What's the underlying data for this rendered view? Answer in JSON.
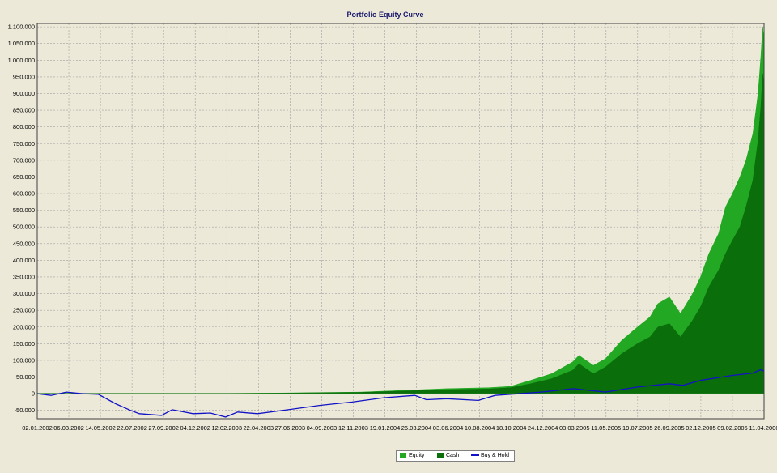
{
  "chart_data": {
    "type": "area",
    "title": "Portfolio Equity Curve",
    "ylim": [
      -75000,
      1110000
    ],
    "y_tick_labels": [
      "1.100.000",
      "1.050.000",
      "1.000.000",
      "950.000",
      "900.000",
      "850.000",
      "800.000",
      "750.000",
      "700.000",
      "650.000",
      "600.000",
      "550.000",
      "500.000",
      "450.000",
      "400.000",
      "350.000",
      "300.000",
      "250.000",
      "200.000",
      "150.000",
      "100.000",
      "50.000",
      "0",
      "-50.000"
    ],
    "y_tick_values": [
      1100000,
      1050000,
      1000000,
      950000,
      900000,
      850000,
      800000,
      750000,
      700000,
      650000,
      600000,
      550000,
      500000,
      450000,
      400000,
      350000,
      300000,
      250000,
      200000,
      150000,
      100000,
      50000,
      0,
      -50000
    ],
    "x_tick_labels": [
      "02.01.2002",
      "06.03.2002",
      "14.05.2002",
      "22.07.2002",
      "27.09.2002",
      "04.12.2002",
      "12.02.2003",
      "22.04.2003",
      "27.06.2003",
      "04.09.2003",
      "12.11.2003",
      "19.01.2004",
      "26.03.2004",
      "03.06.2004",
      "10.08.2004",
      "18.10.2004",
      "24.12.2004",
      "03.03.2005",
      "11.05.2005",
      "19.07.2005",
      "26.09.2005",
      "02.12.2005",
      "09.02.2006",
      "11.04.2006"
    ],
    "grid": true,
    "legend_position": "bottom-center",
    "x_range": [
      "2002-01-02",
      "2006-04-18"
    ],
    "series": [
      {
        "name": "Equity",
        "color": "#22A822",
        "x": [
          "2002-01-02",
          "2002-06-01",
          "2002-12-01",
          "2003-06-01",
          "2003-12-01",
          "2004-03-01",
          "2004-06-01",
          "2004-09-01",
          "2004-10-18",
          "2004-12-01",
          "2005-01-15",
          "2005-03-01",
          "2005-03-15",
          "2005-04-15",
          "2005-05-11",
          "2005-06-15",
          "2005-07-19",
          "2005-08-15",
          "2005-09-01",
          "2005-09-26",
          "2005-10-20",
          "2005-11-15",
          "2005-12-02",
          "2005-12-20",
          "2006-01-10",
          "2006-01-25",
          "2006-02-09",
          "2006-02-25",
          "2006-03-10",
          "2006-03-25",
          "2006-04-05",
          "2006-04-11",
          "2006-04-15",
          "2006-04-18"
        ],
        "values": [
          0,
          0,
          0,
          2000,
          5000,
          10000,
          15000,
          18000,
          22000,
          40000,
          60000,
          95000,
          115000,
          85000,
          105000,
          160000,
          200000,
          230000,
          270000,
          290000,
          240000,
          300000,
          350000,
          420000,
          480000,
          560000,
          600000,
          650000,
          700000,
          780000,
          900000,
          1010000,
          1100000,
          1060000
        ]
      },
      {
        "name": "Cash",
        "color": "#0A6E0A",
        "x": [
          "2002-01-02",
          "2002-06-01",
          "2002-12-01",
          "2003-06-01",
          "2003-12-01",
          "2004-03-01",
          "2004-06-01",
          "2004-09-01",
          "2004-10-18",
          "2004-12-01",
          "2005-01-15",
          "2005-03-01",
          "2005-03-15",
          "2005-04-15",
          "2005-05-11",
          "2005-06-15",
          "2005-07-19",
          "2005-08-15",
          "2005-09-01",
          "2005-09-26",
          "2005-10-20",
          "2005-11-15",
          "2005-12-02",
          "2005-12-20",
          "2006-01-10",
          "2006-01-25",
          "2006-02-09",
          "2006-02-25",
          "2006-03-10",
          "2006-03-25",
          "2006-04-05",
          "2006-04-11",
          "2006-04-15",
          "2006-04-18"
        ],
        "values": [
          0,
          0,
          0,
          1500,
          4000,
          8000,
          12000,
          14000,
          18000,
          30000,
          45000,
          70000,
          90000,
          60000,
          80000,
          120000,
          150000,
          170000,
          200000,
          210000,
          170000,
          220000,
          260000,
          320000,
          370000,
          420000,
          460000,
          500000,
          560000,
          640000,
          760000,
          860000,
          960000,
          930000
        ]
      },
      {
        "name": "Buy & Hold",
        "color": "#1212C8",
        "x": [
          "2002-01-02",
          "2002-02-01",
          "2002-03-06",
          "2002-04-10",
          "2002-05-14",
          "2002-06-20",
          "2002-07-22",
          "2002-08-10",
          "2002-09-27",
          "2002-10-20",
          "2002-12-04",
          "2003-01-10",
          "2003-02-12",
          "2003-03-10",
          "2003-04-22",
          "2003-06-27",
          "2003-09-04",
          "2003-11-12",
          "2004-01-19",
          "2004-03-26",
          "2004-04-20",
          "2004-06-03",
          "2004-08-10",
          "2004-09-15",
          "2004-10-18",
          "2004-12-24",
          "2005-03-03",
          "2005-05-11",
          "2005-07-19",
          "2005-09-26",
          "2005-10-25",
          "2005-12-02",
          "2006-02-09",
          "2006-03-25",
          "2006-04-11",
          "2006-04-18"
        ],
        "values": [
          0,
          -5000,
          5000,
          0,
          -2000,
          -30000,
          -50000,
          -60000,
          -65000,
          -48000,
          -60000,
          -58000,
          -70000,
          -55000,
          -60000,
          -48000,
          -35000,
          -25000,
          -12000,
          -5000,
          -18000,
          -15000,
          -20000,
          -5000,
          -2000,
          5000,
          15000,
          5000,
          20000,
          30000,
          25000,
          40000,
          55000,
          62000,
          72000,
          68000
        ]
      }
    ]
  }
}
